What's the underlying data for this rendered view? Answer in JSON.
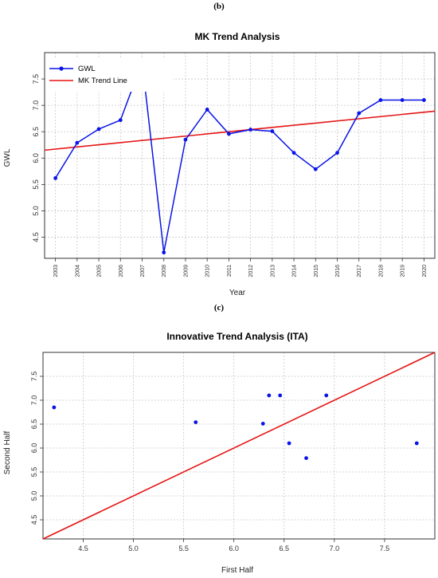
{
  "panel_b_label": "(b)",
  "panel_c_label": "(c)",
  "colors": {
    "series": "#0a14e6",
    "trend": "#e61414",
    "grid": "#c8c8c8"
  },
  "chart_data": [
    {
      "type": "line",
      "title": "MK Trend Analysis",
      "xlabel": "Year",
      "ylabel": "GWL",
      "x": [
        "2003",
        "2004",
        "2005",
        "2006",
        "2007",
        "2008",
        "2009",
        "2010",
        "2011",
        "2012",
        "2013",
        "2014",
        "2015",
        "2016",
        "2017",
        "2018",
        "2019",
        "2020"
      ],
      "series": [
        {
          "name": "GWL",
          "values": [
            5.62,
            6.29,
            6.55,
            6.72,
            7.82,
            4.21,
            6.35,
            6.92,
            6.46,
            6.54,
            6.51,
            6.1,
            5.79,
            6.1,
            6.85,
            7.1,
            7.1,
            7.1
          ],
          "color": "#0a14e6"
        },
        {
          "name": "MK Trend Line",
          "from": 6.15,
          "to": 6.89,
          "color": "#e61414"
        }
      ],
      "ylim": [
        4.1,
        8.0
      ],
      "yticks": [
        "4.5",
        "5.0",
        "5.5",
        "6.0",
        "6.5",
        "7.0",
        "7.5"
      ],
      "grid": true,
      "legend": "top-left"
    },
    {
      "type": "scatter",
      "title": "Innovative Trend Analysis (ITA)",
      "xlabel": "First Half",
      "ylabel": "Second Half",
      "points": [
        {
          "x": 4.21,
          "y": 6.85
        },
        {
          "x": 5.62,
          "y": 6.54
        },
        {
          "x": 6.29,
          "y": 6.51
        },
        {
          "x": 6.35,
          "y": 7.1
        },
        {
          "x": 6.46,
          "y": 7.1
        },
        {
          "x": 6.55,
          "y": 6.1
        },
        {
          "x": 6.72,
          "y": 5.79
        },
        {
          "x": 6.92,
          "y": 7.1
        },
        {
          "x": 7.82,
          "y": 6.1
        }
      ],
      "reference_line": "1:1",
      "xlim": [
        4.1,
        8.0
      ],
      "ylim": [
        4.1,
        8.0
      ],
      "xticks": [
        "4.5",
        "5.0",
        "5.5",
        "6.0",
        "6.5",
        "7.0",
        "7.5"
      ],
      "yticks": [
        "4.5",
        "5.0",
        "5.5",
        "6.0",
        "6.5",
        "7.0",
        "7.5"
      ],
      "grid": true
    }
  ]
}
